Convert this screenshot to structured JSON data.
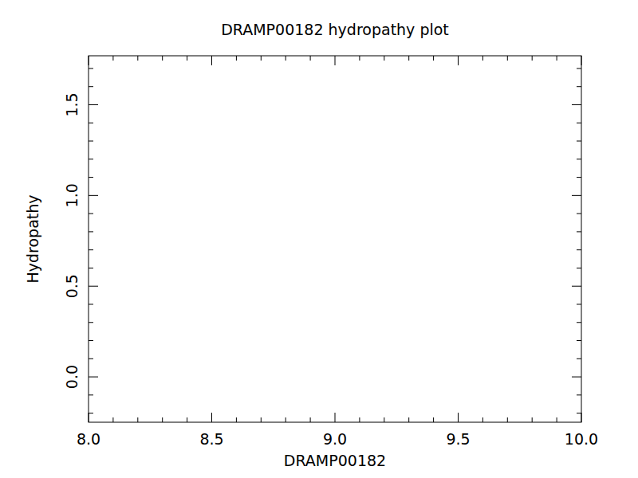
{
  "chart_data": {
    "type": "line",
    "title": "DRAMP00182 hydropathy plot",
    "x_label": "DRAMP00182",
    "y_label": "Hydropathy",
    "xlim": [
      8,
      10
    ],
    "xticks": [
      {
        "value": 8,
        "label": "8.0"
      },
      8.5,
      {
        "value": 9,
        "label": "9.0"
      },
      9.5,
      {
        "value": 10,
        "label": "10.0"
      }
    ],
    "ylim": [
      -0.25,
      1.77
    ],
    "yticks": [
      {
        "value": 0,
        "label": "0.0"
      },
      0.5,
      {
        "value": 1,
        "label": "1.0"
      },
      1.5
    ],
    "grid": false
  }
}
